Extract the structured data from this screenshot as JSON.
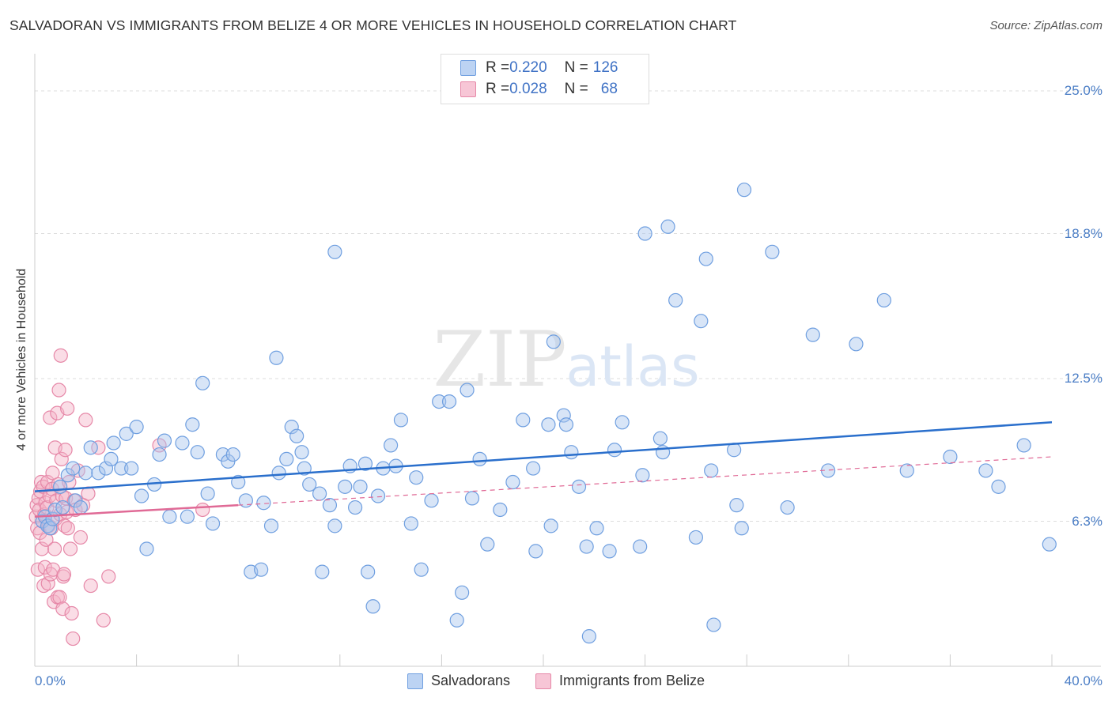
{
  "header": {
    "title": "SALVADORAN VS IMMIGRANTS FROM BELIZE 4 OR MORE VEHICLES IN HOUSEHOLD CORRELATION CHART",
    "source": "Source: ZipAtlas.com"
  },
  "watermark": {
    "zip": "ZIP",
    "atlas": "atlas"
  },
  "legend_top": {
    "rows": [
      {
        "r_label": "R = ",
        "r_value": "0.220",
        "n_label": "N = ",
        "n_value": "126"
      },
      {
        "r_label": "R = ",
        "r_value": "0.028",
        "n_label": "N = ",
        "n_value": "68"
      }
    ]
  },
  "colors": {
    "blue_fill": "#a9c6ee",
    "blue_stroke": "#6f9fe0",
    "blue_line": "#2a6fcc",
    "pink_fill": "#f4b3c8",
    "pink_stroke": "#e688a8",
    "pink_line": "#e06a96",
    "grid": "#dddddd",
    "tick_text": "#4a7dc5"
  },
  "chart_data": {
    "type": "scatter",
    "title": "SALVADORAN VS IMMIGRANTS FROM BELIZE 4 OR MORE VEHICLES IN HOUSEHOLD CORRELATION CHART",
    "xlabel": "",
    "ylabel": "4 or more Vehicles in Household",
    "xlim": [
      0,
      40
    ],
    "ylim": [
      0,
      26.2
    ],
    "x_tick_labels": [
      "0.0%",
      "40.0%"
    ],
    "y_ticks": [
      6.3,
      12.5,
      18.8,
      25.0
    ],
    "y_tick_labels": [
      "6.3%",
      "12.5%",
      "18.8%",
      "25.0%"
    ],
    "grid": true,
    "legend_position": "bottom",
    "series": [
      {
        "name": "Salvadorans",
        "color": "#6f9fe0",
        "trend": {
          "x": [
            0,
            40
          ],
          "y": [
            7.6,
            10.6
          ],
          "style": "solid"
        },
        "points": [
          [
            0.3,
            6.3
          ],
          [
            0.4,
            6.5
          ],
          [
            0.5,
            6.1
          ],
          [
            0.6,
            6.0
          ],
          [
            0.7,
            6.4
          ],
          [
            0.8,
            6.8
          ],
          [
            1.0,
            7.8
          ],
          [
            1.1,
            6.9
          ],
          [
            1.3,
            8.3
          ],
          [
            1.5,
            8.6
          ],
          [
            1.6,
            7.2
          ],
          [
            1.8,
            6.9
          ],
          [
            2.0,
            8.4
          ],
          [
            2.2,
            9.5
          ],
          [
            2.5,
            8.4
          ],
          [
            2.8,
            8.6
          ],
          [
            3.0,
            9.0
          ],
          [
            3.1,
            9.7
          ],
          [
            3.4,
            8.6
          ],
          [
            3.6,
            10.1
          ],
          [
            3.8,
            8.6
          ],
          [
            4.0,
            10.4
          ],
          [
            4.2,
            7.4
          ],
          [
            4.4,
            5.1
          ],
          [
            4.7,
            7.9
          ],
          [
            4.9,
            9.2
          ],
          [
            5.1,
            9.8
          ],
          [
            5.3,
            6.5
          ],
          [
            5.8,
            9.7
          ],
          [
            6.0,
            6.5
          ],
          [
            6.2,
            10.5
          ],
          [
            6.4,
            9.3
          ],
          [
            6.6,
            12.3
          ],
          [
            6.8,
            7.5
          ],
          [
            7.0,
            6.2
          ],
          [
            7.4,
            9.2
          ],
          [
            7.6,
            8.9
          ],
          [
            7.8,
            9.2
          ],
          [
            8.0,
            8.0
          ],
          [
            8.3,
            7.2
          ],
          [
            8.5,
            4.1
          ],
          [
            8.9,
            4.2
          ],
          [
            9.0,
            7.1
          ],
          [
            9.3,
            6.1
          ],
          [
            9.5,
            13.4
          ],
          [
            9.6,
            8.4
          ],
          [
            9.9,
            9.0
          ],
          [
            10.1,
            10.4
          ],
          [
            10.3,
            10.0
          ],
          [
            10.5,
            9.3
          ],
          [
            10.6,
            8.6
          ],
          [
            10.8,
            7.9
          ],
          [
            11.2,
            7.5
          ],
          [
            11.3,
            4.1
          ],
          [
            11.6,
            7.0
          ],
          [
            11.8,
            6.1
          ],
          [
            11.8,
            18.0
          ],
          [
            12.2,
            7.8
          ],
          [
            12.4,
            8.7
          ],
          [
            12.6,
            6.9
          ],
          [
            12.8,
            7.8
          ],
          [
            13.0,
            8.8
          ],
          [
            13.1,
            4.1
          ],
          [
            13.3,
            2.6
          ],
          [
            13.5,
            7.4
          ],
          [
            13.7,
            8.6
          ],
          [
            14.0,
            9.6
          ],
          [
            14.2,
            8.7
          ],
          [
            14.4,
            10.7
          ],
          [
            14.8,
            6.2
          ],
          [
            15.0,
            8.2
          ],
          [
            15.2,
            4.2
          ],
          [
            15.6,
            7.2
          ],
          [
            15.9,
            11.5
          ],
          [
            16.3,
            11.5
          ],
          [
            16.6,
            2.0
          ],
          [
            16.8,
            3.2
          ],
          [
            17.0,
            12.0
          ],
          [
            17.2,
            7.3
          ],
          [
            17.5,
            9.0
          ],
          [
            17.8,
            5.3
          ],
          [
            18.3,
            6.8
          ],
          [
            18.8,
            8.0
          ],
          [
            19.2,
            10.7
          ],
          [
            19.6,
            8.6
          ],
          [
            19.7,
            5.0
          ],
          [
            20.2,
            10.5
          ],
          [
            20.3,
            6.1
          ],
          [
            20.4,
            14.1
          ],
          [
            20.8,
            10.9
          ],
          [
            20.9,
            10.5
          ],
          [
            21.1,
            9.3
          ],
          [
            21.4,
            7.8
          ],
          [
            21.7,
            5.2
          ],
          [
            21.8,
            1.3
          ],
          [
            22.1,
            6.0
          ],
          [
            22.6,
            5.0
          ],
          [
            22.8,
            9.4
          ],
          [
            23.1,
            10.6
          ],
          [
            23.8,
            5.2
          ],
          [
            23.9,
            8.3
          ],
          [
            24.0,
            18.8
          ],
          [
            24.6,
            9.9
          ],
          [
            24.7,
            9.3
          ],
          [
            24.9,
            19.1
          ],
          [
            25.2,
            15.9
          ],
          [
            26.0,
            5.6
          ],
          [
            26.2,
            15.0
          ],
          [
            26.4,
            17.7
          ],
          [
            26.6,
            8.5
          ],
          [
            26.7,
            1.8
          ],
          [
            27.5,
            9.4
          ],
          [
            27.6,
            7.0
          ],
          [
            27.8,
            6.0
          ],
          [
            27.9,
            20.7
          ],
          [
            29.0,
            18.0
          ],
          [
            29.6,
            6.9
          ],
          [
            30.6,
            14.4
          ],
          [
            31.2,
            8.5
          ],
          [
            32.3,
            14.0
          ],
          [
            33.4,
            15.9
          ],
          [
            34.3,
            8.5
          ],
          [
            36.0,
            9.1
          ],
          [
            37.4,
            8.5
          ],
          [
            37.9,
            7.8
          ],
          [
            38.9,
            9.6
          ],
          [
            39.9,
            5.3
          ]
        ]
      },
      {
        "name": "Immigrants from Belize",
        "color": "#e688a8",
        "trend": {
          "x": [
            0,
            8.0
          ],
          "y": [
            6.5,
            7.0
          ],
          "style": "solid",
          "extended": {
            "x": [
              8.0,
              40
            ],
            "y": [
              7.0,
              9.1
            ],
            "style": "dashed"
          }
        },
        "points": [
          [
            0.05,
            6.5
          ],
          [
            0.08,
            7.0
          ],
          [
            0.1,
            6.0
          ],
          [
            0.12,
            4.2
          ],
          [
            0.15,
            7.3
          ],
          [
            0.18,
            6.8
          ],
          [
            0.2,
            5.8
          ],
          [
            0.22,
            7.6
          ],
          [
            0.25,
            8.0
          ],
          [
            0.28,
            5.1
          ],
          [
            0.3,
            6.3
          ],
          [
            0.33,
            7.8
          ],
          [
            0.35,
            3.5
          ],
          [
            0.38,
            6.6
          ],
          [
            0.4,
            4.3
          ],
          [
            0.42,
            7.1
          ],
          [
            0.45,
            5.5
          ],
          [
            0.48,
            6.9
          ],
          [
            0.5,
            8.0
          ],
          [
            0.52,
            3.6
          ],
          [
            0.55,
            6.1
          ],
          [
            0.58,
            7.4
          ],
          [
            0.6,
            10.8
          ],
          [
            0.62,
            4.0
          ],
          [
            0.65,
            6.0
          ],
          [
            0.68,
            7.7
          ],
          [
            0.7,
            8.4
          ],
          [
            0.72,
            4.2
          ],
          [
            0.75,
            2.8
          ],
          [
            0.78,
            5.1
          ],
          [
            0.8,
            9.5
          ],
          [
            0.82,
            6.4
          ],
          [
            0.85,
            7.2
          ],
          [
            0.88,
            11.0
          ],
          [
            0.9,
            3.0
          ],
          [
            0.92,
            7.9
          ],
          [
            0.95,
            12.0
          ],
          [
            0.98,
            3.0
          ],
          [
            1.0,
            6.6
          ],
          [
            1.02,
            13.5
          ],
          [
            1.05,
            9.0
          ],
          [
            1.08,
            7.4
          ],
          [
            1.1,
            2.5
          ],
          [
            1.12,
            3.9
          ],
          [
            1.15,
            4.0
          ],
          [
            1.18,
            6.1
          ],
          [
            1.2,
            9.4
          ],
          [
            1.22,
            7.3
          ],
          [
            1.25,
            6.7
          ],
          [
            1.28,
            11.2
          ],
          [
            1.3,
            6.0
          ],
          [
            1.35,
            8.0
          ],
          [
            1.4,
            5.1
          ],
          [
            1.45,
            2.3
          ],
          [
            1.5,
            1.2
          ],
          [
            1.55,
            7.2
          ],
          [
            1.6,
            6.8
          ],
          [
            1.7,
            8.5
          ],
          [
            1.8,
            5.6
          ],
          [
            1.9,
            7.0
          ],
          [
            2.0,
            10.7
          ],
          [
            2.1,
            7.5
          ],
          [
            2.2,
            3.5
          ],
          [
            2.5,
            9.5
          ],
          [
            2.7,
            2.0
          ],
          [
            2.9,
            3.9
          ],
          [
            4.9,
            9.6
          ],
          [
            6.6,
            6.8
          ]
        ]
      }
    ]
  }
}
